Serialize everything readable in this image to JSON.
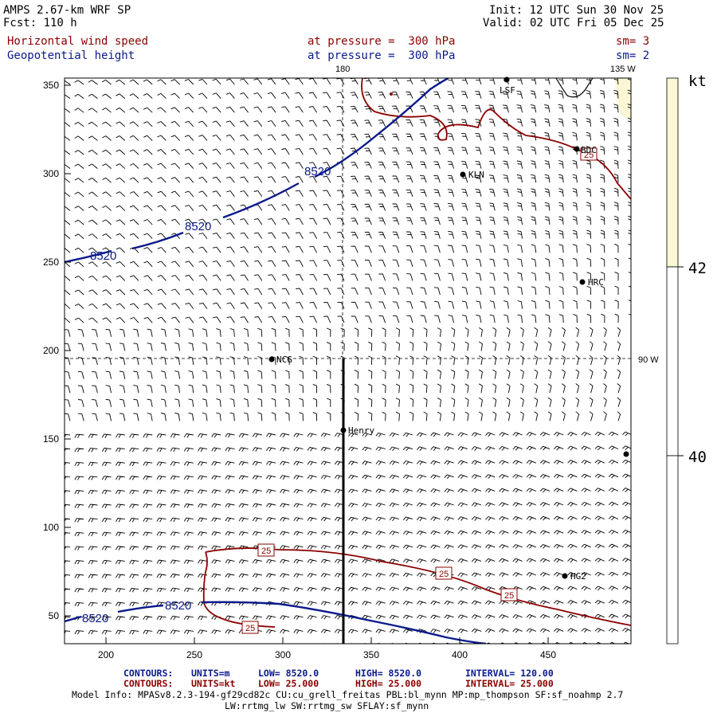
{
  "header": {
    "title": "AMPS 2.67-km WRF SP",
    "forecast": "Fcst: 110 h",
    "init": "Init: 12 UTC Sun 30 Nov 25",
    "valid": "Valid: 02 UTC Fri 05 Dec 25",
    "field1_name": "Horizontal wind speed",
    "field1_level": "at pressure =  300 hPa",
    "field1_smooth": "sm= 3",
    "field2_name": "Geopotential height",
    "field2_level": "at pressure =  300 hPa",
    "field2_smooth": "sm= 2"
  },
  "map": {
    "x_ticks": [
      "200",
      "250",
      "300",
      "350",
      "400",
      "450"
    ],
    "y_ticks": [
      "50",
      "100",
      "150",
      "200",
      "250",
      "300",
      "350"
    ],
    "meridian_label_180": "180",
    "meridian_label_135w": "135 W",
    "meridian_label_90w": "90 W",
    "height_contour_label": "8520",
    "wind_contour_label": "25",
    "stations": [
      {
        "name": "LSF"
      },
      {
        "name": "BDC"
      },
      {
        "name": "KLN"
      },
      {
        "name": "HRC"
      },
      {
        "name": "NCG"
      },
      {
        "name": "Henry"
      },
      {
        "name": "HG2"
      },
      {
        "name": ""
      }
    ],
    "colors": {
      "height_contour": "#0a1a8a",
      "wind_contour": "#8b0000",
      "barbs": "#000000",
      "shade_high": "#fbf6d3"
    }
  },
  "colorbar": {
    "unit": "kt",
    "labels": [
      "42",
      "40"
    ]
  },
  "footer": {
    "contours1_label": "CONTOURS:",
    "contours1_units": "UNITS=m",
    "contours1_low": "LOW=   8520.0",
    "contours1_high": "HIGH=   8520.0",
    "contours1_interval": "INTERVAL=    120.00",
    "contours2_label": "CONTOURS:",
    "contours2_units": "UNITS=kt",
    "contours2_low": "LOW=   25.000",
    "contours2_high": "HIGH=   25.000",
    "contours2_interval": "INTERVAL=    25.000",
    "model_info": "Model Info: MPASv8.2.3-194-gf29cd82c CU:cu_grell_freitas PBL:bl_mynn MP:mp_thompson SF:sf_noahmp 2.7",
    "model_info2": "LW:rrtmg_lw SW:rrtmg_sw SFLAY:sf_mynn"
  }
}
